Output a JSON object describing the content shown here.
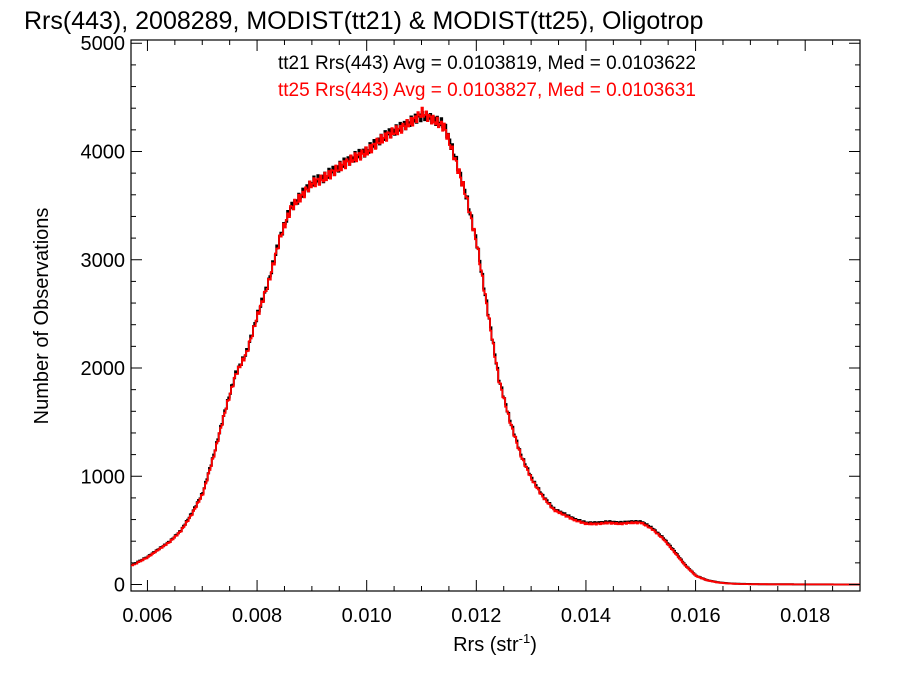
{
  "chart_data": {
    "type": "line",
    "title": "Rrs(443), 2008289, MODIST(tt21) & MODIST(tt25), Oligotrop",
    "xlabel": "Rrs (str",
    "xlabel_sup": "-1",
    "xlabel_end": ")",
    "ylabel": "Number of Observations",
    "xlim": [
      0.0057,
      0.019
    ],
    "ylim": [
      -60,
      5030
    ],
    "x_ticks": [
      0.006,
      0.008,
      0.01,
      0.012,
      0.014,
      0.016,
      0.018
    ],
    "x_tick_labels": [
      "0.006",
      "0.008",
      "0.010",
      "0.012",
      "0.014",
      "0.016",
      "0.018"
    ],
    "y_ticks": [
      0,
      1000,
      2000,
      3000,
      4000,
      5000
    ],
    "y_tick_labels": [
      "0",
      "1000",
      "2000",
      "3000",
      "4000",
      "5000"
    ],
    "annotations": [
      {
        "text": "tt21 Rrs(443) Avg = 0.0103819, Med = 0.0103622",
        "color": "#000000"
      },
      {
        "text": "tt25 Rrs(443) Avg = 0.0103827, Med = 0.0103631",
        "color": "#ff0000"
      }
    ],
    "step_style": "histogram",
    "series": [
      {
        "color": "#000000",
        "x": [
          0.0057,
          0.006,
          0.0062,
          0.0064,
          0.0066,
          0.0068,
          0.007,
          0.0072,
          0.0074,
          0.0076,
          0.0078,
          0.008,
          0.0082,
          0.0084,
          0.0086,
          0.0088,
          0.009,
          0.0092,
          0.0094,
          0.0096,
          0.0098,
          0.01,
          0.0102,
          0.0104,
          0.0106,
          0.0108,
          0.011,
          0.0112,
          0.0114,
          0.0116,
          0.0118,
          0.012,
          0.0122,
          0.0124,
          0.0126,
          0.0128,
          0.013,
          0.0132,
          0.0134,
          0.0136,
          0.0138,
          0.014,
          0.0142,
          0.0144,
          0.0146,
          0.0148,
          0.015,
          0.0152,
          0.0154,
          0.0156,
          0.0158,
          0.016,
          0.0162,
          0.0164,
          0.0166,
          0.0168,
          0.017,
          0.0174,
          0.018,
          0.019
        ],
        "y": [
          180,
          260,
          330,
          400,
          500,
          660,
          850,
          1200,
          1600,
          1950,
          2150,
          2500,
          2800,
          3200,
          3480,
          3600,
          3720,
          3760,
          3830,
          3900,
          3960,
          4010,
          4100,
          4170,
          4220,
          4280,
          4330,
          4300,
          4250,
          3950,
          3600,
          3150,
          2520,
          1900,
          1520,
          1200,
          980,
          820,
          700,
          650,
          600,
          570,
          570,
          580,
          570,
          580,
          580,
          520,
          430,
          310,
          180,
          80,
          40,
          20,
          10,
          6,
          4,
          2,
          1,
          0
        ]
      },
      {
        "color": "#ff0000",
        "x": [
          0.0057,
          0.006,
          0.0062,
          0.0064,
          0.0066,
          0.0068,
          0.007,
          0.0072,
          0.0074,
          0.0076,
          0.0078,
          0.008,
          0.0082,
          0.0084,
          0.0086,
          0.0088,
          0.009,
          0.0092,
          0.0094,
          0.0096,
          0.0098,
          0.01,
          0.0102,
          0.0104,
          0.0106,
          0.0108,
          0.011,
          0.0112,
          0.0114,
          0.0116,
          0.0118,
          0.012,
          0.0122,
          0.0124,
          0.0126,
          0.0128,
          0.013,
          0.0132,
          0.0134,
          0.0136,
          0.0138,
          0.014,
          0.0142,
          0.0144,
          0.0146,
          0.0148,
          0.015,
          0.0152,
          0.0154,
          0.0156,
          0.0158,
          0.016,
          0.0162,
          0.0164,
          0.0166,
          0.0168,
          0.017,
          0.0174,
          0.018,
          0.019
        ],
        "y": [
          175,
          255,
          325,
          395,
          495,
          650,
          840,
          1190,
          1590,
          1940,
          2140,
          2490,
          2790,
          3190,
          3470,
          3590,
          3710,
          3750,
          3820,
          3890,
          3950,
          4000,
          4090,
          4160,
          4210,
          4270,
          4360,
          4290,
          4230,
          3930,
          3590,
          3140,
          2510,
          1890,
          1510,
          1190,
          970,
          810,
          690,
          640,
          590,
          560,
          560,
          570,
          560,
          570,
          570,
          510,
          420,
          300,
          175,
          78,
          38,
          18,
          9,
          5,
          3,
          2,
          1,
          0
        ]
      }
    ]
  }
}
